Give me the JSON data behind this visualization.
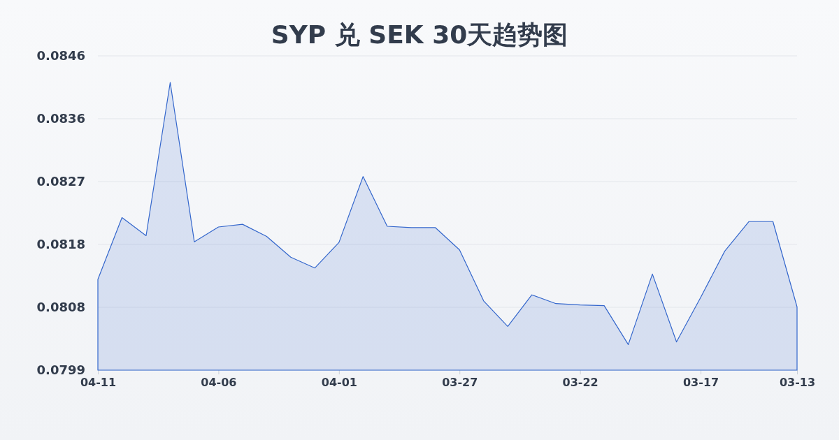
{
  "chart_data": {
    "type": "area",
    "title": "SYP 兑 SEK 30天趋势图",
    "categories": [
      "04-11",
      null,
      null,
      null,
      null,
      "04-06",
      null,
      null,
      null,
      null,
      "04-01",
      null,
      null,
      null,
      null,
      "03-27",
      null,
      null,
      null,
      null,
      "03-22",
      null,
      null,
      null,
      null,
      "03-17",
      null,
      null,
      null,
      "03-13"
    ],
    "values": [
      0.08125,
      0.08217,
      0.0819,
      0.08418,
      0.08181,
      0.08203,
      0.08207,
      0.08189,
      0.08158,
      0.08142,
      0.0818,
      0.08278,
      0.08204,
      0.08202,
      0.08202,
      0.08169,
      0.08093,
      0.08055,
      0.08102,
      0.08089,
      0.08087,
      0.08086,
      0.08028,
      0.08133,
      0.08032,
      0.08098,
      0.08167,
      0.08211,
      0.08211,
      0.08084
    ],
    "color": "#3366cc",
    "ylim": [
      0.0799,
      0.084575
    ],
    "yticks": [
      0.0799,
      {
        "value": 0.080835,
        "label": "0.0808"
      },
      {
        "value": 0.08177,
        "label": "0.0818"
      },
      {
        "value": 0.082705,
        "label": "0.0827"
      },
      {
        "value": 0.08364,
        "label": "0.0836"
      },
      {
        "value": 0.084575,
        "label": "0.0846"
      }
    ],
    "grid": "y"
  }
}
